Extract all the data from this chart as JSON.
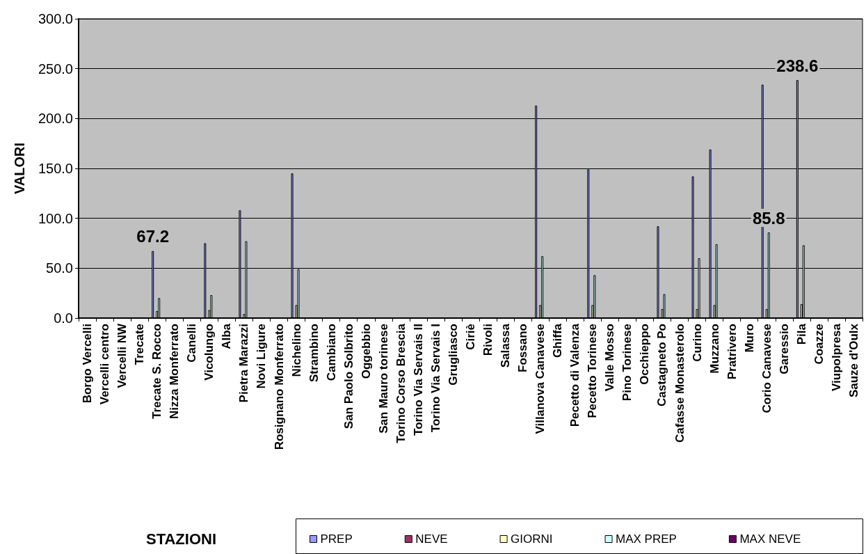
{
  "chart_data": {
    "type": "bar",
    "annotations": [
      "STAZIONI"
    ],
    "ylabel": "VALORI",
    "categories": [
      "Borgo Vercelli",
      "Vercelli centro",
      "Vercelli NW",
      "Trecate",
      "Trecate S. Rocco",
      "Nizza Monferrato",
      "Canelli",
      "Vicolungo",
      "Alba",
      "Pietra Marazzi",
      "Novi Ligure",
      "Rosignano Monferrato",
      "Nichelino",
      "Strambino",
      "Cambiano",
      "San Paolo Solbrito",
      "Oggebbio",
      "San Mauro torinese",
      "Torino Corso Brescia",
      "Torino Via Servais II",
      "Torino Via Servais I",
      "Grugliasco",
      "Ciriè",
      "Rivoli",
      "Salassa",
      "Fossano",
      "Villanova Canavese",
      "Ghiffa",
      "Pecetto di Valenza",
      "Pecetto Torinese",
      "Valle Mosso",
      "Pino Torinese",
      "Occhieppo",
      "Castagneto Po",
      "Cafasse Monasterolo",
      "Curino",
      "Muzzano",
      "Pratrivero",
      "Muro",
      "Corio Canavese",
      "Garessio",
      "Pila",
      "Coazze",
      "Viupolpresa",
      "Sauze d'Oulx"
    ],
    "series": [
      {
        "name": "PREP",
        "color": "#9999ff",
        "values": [
          null,
          null,
          null,
          null,
          67.2,
          null,
          null,
          75,
          null,
          108,
          null,
          null,
          145,
          null,
          null,
          null,
          null,
          null,
          null,
          null,
          null,
          null,
          null,
          null,
          null,
          null,
          213,
          null,
          null,
          149,
          null,
          null,
          null,
          92,
          null,
          142,
          169,
          null,
          null,
          234,
          null,
          238.6,
          null,
          null,
          null
        ],
        "value_labels": [
          null,
          null,
          null,
          null,
          "67.2",
          null,
          null,
          null,
          null,
          null,
          null,
          null,
          null,
          null,
          null,
          null,
          null,
          null,
          null,
          null,
          null,
          null,
          null,
          null,
          null,
          null,
          null,
          null,
          null,
          null,
          null,
          null,
          null,
          null,
          null,
          null,
          null,
          null,
          null,
          null,
          null,
          "238.6",
          null,
          null,
          null
        ]
      },
      {
        "name": "NEVE",
        "color": "#993366",
        "values": [
          null,
          null,
          null,
          null,
          null,
          null,
          null,
          null,
          null,
          null,
          null,
          null,
          null,
          null,
          null,
          null,
          null,
          null,
          null,
          null,
          null,
          null,
          null,
          null,
          null,
          null,
          null,
          null,
          null,
          null,
          null,
          null,
          null,
          null,
          null,
          null,
          null,
          null,
          null,
          null,
          null,
          null,
          null,
          null,
          null
        ]
      },
      {
        "name": "GIORNI",
        "color": "#ffffcc",
        "values": [
          null,
          null,
          null,
          null,
          7,
          null,
          null,
          8,
          null,
          4,
          null,
          null,
          13,
          null,
          null,
          null,
          null,
          null,
          null,
          null,
          null,
          null,
          null,
          null,
          null,
          null,
          13,
          null,
          null,
          13,
          null,
          null,
          null,
          9,
          null,
          9,
          13,
          null,
          null,
          9,
          null,
          14,
          null,
          null,
          null
        ]
      },
      {
        "name": "MAX PREP",
        "color": "#ccffff",
        "values": [
          null,
          null,
          null,
          null,
          20,
          null,
          null,
          23,
          null,
          77,
          null,
          null,
          49,
          null,
          null,
          null,
          null,
          null,
          null,
          null,
          null,
          null,
          null,
          null,
          null,
          null,
          62,
          null,
          null,
          43,
          null,
          null,
          null,
          24,
          null,
          60,
          74,
          null,
          null,
          85.8,
          null,
          73,
          null,
          null,
          null
        ],
        "value_labels": [
          null,
          null,
          null,
          null,
          null,
          null,
          null,
          null,
          null,
          null,
          null,
          null,
          null,
          null,
          null,
          null,
          null,
          null,
          null,
          null,
          null,
          null,
          null,
          null,
          null,
          null,
          null,
          null,
          null,
          null,
          null,
          null,
          null,
          null,
          null,
          null,
          null,
          null,
          null,
          "85.8",
          null,
          null,
          null,
          null,
          null
        ]
      },
      {
        "name": "MAX NEVE",
        "color": "#660066",
        "values": [
          null,
          null,
          null,
          null,
          null,
          null,
          null,
          null,
          null,
          null,
          null,
          null,
          null,
          null,
          null,
          null,
          null,
          null,
          null,
          null,
          null,
          null,
          null,
          null,
          null,
          null,
          null,
          null,
          null,
          null,
          null,
          null,
          null,
          null,
          null,
          null,
          null,
          null,
          null,
          null,
          null,
          null,
          null,
          null,
          null
        ]
      }
    ],
    "ylim": [
      0,
      300
    ],
    "yticks": [
      {
        "value": 0,
        "label": "0.0"
      },
      {
        "value": 50,
        "label": "50.0"
      },
      {
        "value": 100,
        "label": "100.0"
      },
      {
        "value": 150,
        "label": "150.0"
      },
      {
        "value": 200,
        "label": "200.0"
      },
      {
        "value": 250,
        "label": "250.0"
      },
      {
        "value": 300,
        "label": "300.0"
      }
    ],
    "grid": "y",
    "legend": "bottom"
  }
}
